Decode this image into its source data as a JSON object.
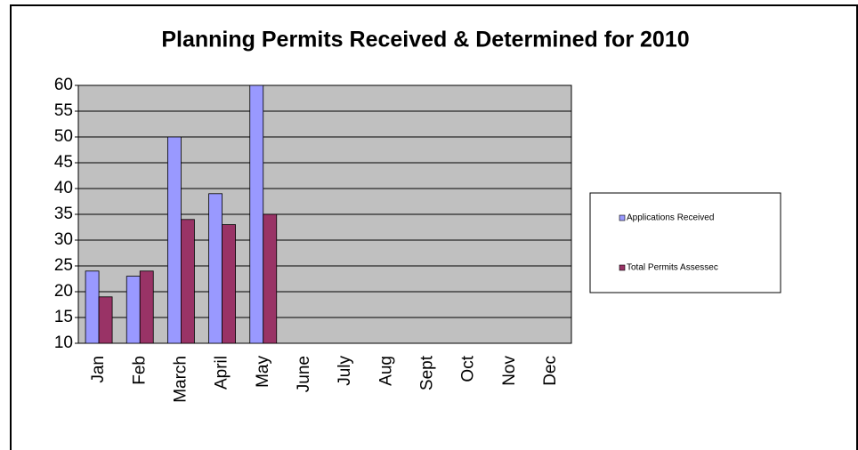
{
  "chart_data": {
    "type": "bar",
    "title": "Planning Permits Received & Determined for 2010",
    "categories": [
      "Jan",
      "Feb",
      "March",
      "April",
      "May",
      "June",
      "July",
      "Aug",
      "Sept",
      "Oct",
      "Nov",
      "Dec"
    ],
    "series": [
      {
        "name": "Applications Received",
        "color": "#9999ff",
        "values": [
          24,
          23,
          50,
          39,
          60,
          null,
          null,
          null,
          null,
          null,
          null,
          null
        ]
      },
      {
        "name": "Total Permits Assessec",
        "color": "#993366",
        "values": [
          19,
          24,
          34,
          33,
          35,
          null,
          null,
          null,
          null,
          null,
          null,
          null
        ]
      }
    ],
    "ylim": [
      10,
      60
    ],
    "yticks": [
      10,
      15,
      20,
      25,
      30,
      35,
      40,
      45,
      50,
      55,
      60
    ],
    "grid": true,
    "legend": "right",
    "plot_background": "#c0c0c0"
  }
}
